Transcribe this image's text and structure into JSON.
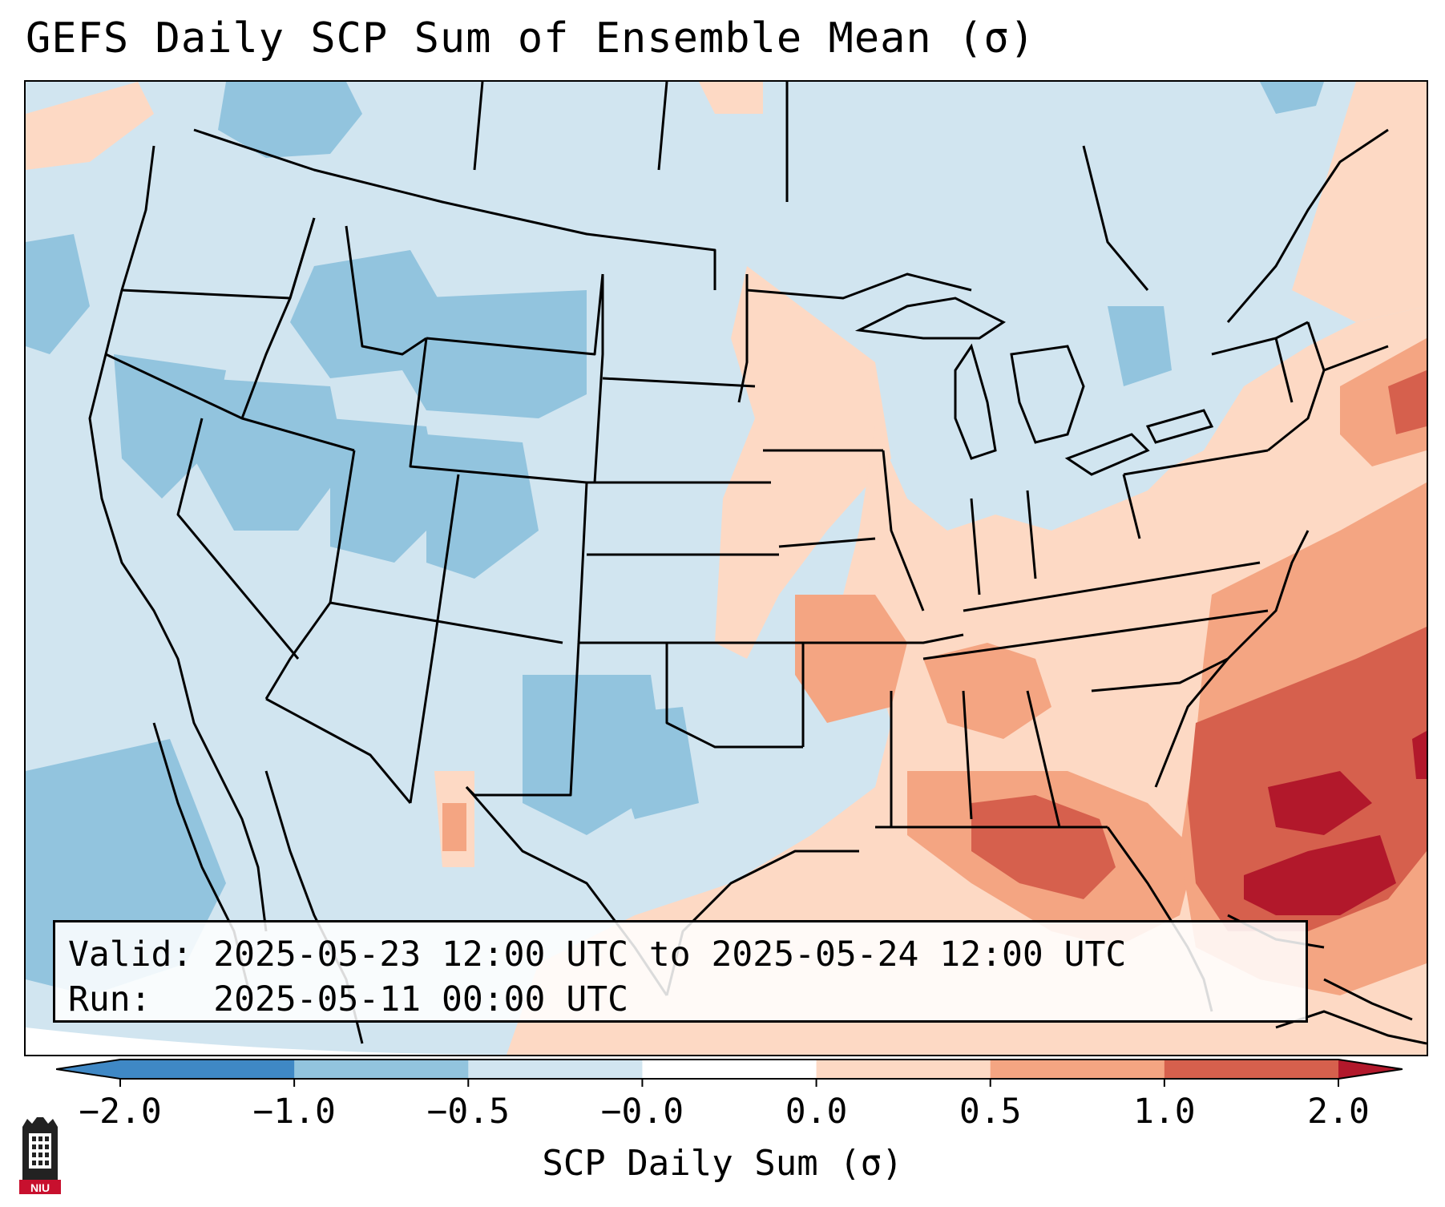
{
  "title": "GEFS Daily SCP Sum of Ensemble Mean (σ)",
  "info": {
    "valid": "Valid: 2025-05-23 12:00 UTC to 2025-05-24 12:00 UTC",
    "run": "Run:   2025-05-11 00:00 UTC"
  },
  "colorbar": {
    "label": "SCP Daily Sum (σ)",
    "ticks": [
      "−2.0",
      "−1.0",
      "−0.5",
      "−0.0",
      "0.0",
      "0.5",
      "1.0",
      "2.0"
    ],
    "colors": [
      "#3f88c5",
      "#92c4de",
      "#d1e5f0",
      "#ffffff",
      "#fdd9c4",
      "#f4a582",
      "#d6604d",
      "#b2182b"
    ],
    "extend": "both"
  },
  "logo": {
    "text": "NIU",
    "colors": {
      "red": "#c8102e",
      "dark": "#222222"
    }
  },
  "map": {
    "region": "Contiguous United States",
    "colors": {
      "strong_negative": "#92c4de",
      "weak_negative": "#d1e5f0",
      "weak_positive": "#fdd9c4",
      "moderate_positive": "#f4a582",
      "strong_positive": "#d6604d",
      "very_strong_positive": "#b2182b",
      "borders": "#000000"
    }
  }
}
